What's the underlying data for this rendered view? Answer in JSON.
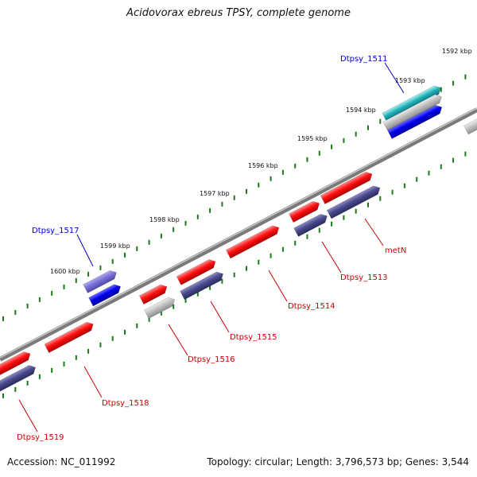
{
  "title": "Acidovorax ebreus TPSY, complete genome",
  "footer": {
    "accession": "Accession: NC_011992",
    "summary": "Topology: circular; Length: 3,796,573 bp; Genes: 3,544"
  },
  "colors": {
    "backbone": "#888888",
    "ticks": "#1a7a1a",
    "label_forward": "#0000cc",
    "label_reverse": "#cc0000"
  },
  "scale_labels": [
    "1592 kbp",
    "1593 kbp",
    "1594 kbp",
    "1595 kbp",
    "1596 kbp",
    "1597 kbp",
    "1598 kbp",
    "1599 kbp",
    "1600 kbp"
  ],
  "gene_labels": [
    {
      "name": "Dtpsy_1511",
      "strand": "forward"
    },
    {
      "name": "Dtpsy_1517",
      "strand": "forward"
    },
    {
      "name": "metN",
      "strand": "reverse"
    },
    {
      "name": "Dtpsy_1513",
      "strand": "reverse"
    },
    {
      "name": "Dtpsy_1514",
      "strand": "reverse"
    },
    {
      "name": "Dtpsy_1515",
      "strand": "reverse"
    },
    {
      "name": "Dtpsy_1516",
      "strand": "reverse"
    },
    {
      "name": "Dtpsy_1518",
      "strand": "reverse"
    },
    {
      "name": "Dtpsy_1519",
      "strand": "reverse"
    }
  ]
}
